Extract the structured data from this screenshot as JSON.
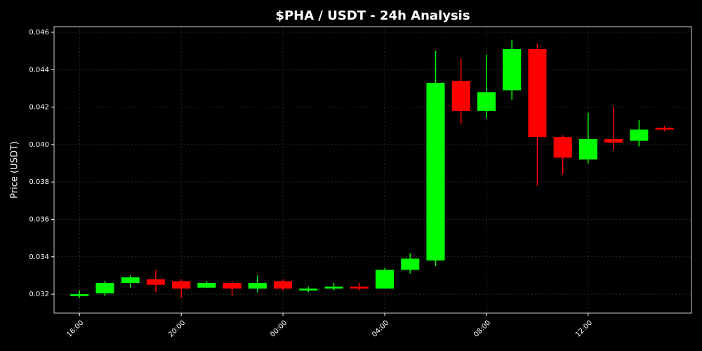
{
  "chart_data": {
    "type": "candlestick",
    "title": "$PHA / USDT - 24h Analysis",
    "y_label": "Price (USDT)",
    "x": [
      16,
      17,
      18,
      19,
      20,
      21,
      22,
      23,
      24,
      25,
      26,
      27,
      28,
      29,
      30,
      31,
      32,
      33,
      34,
      35,
      36,
      37,
      38,
      39
    ],
    "open": [
      0.0319,
      0.03205,
      0.0326,
      0.0328,
      0.0327,
      0.03235,
      0.0326,
      0.0323,
      0.0327,
      0.0322,
      0.0323,
      0.0324,
      0.0323,
      0.0333,
      0.0338,
      0.0434,
      0.0418,
      0.0429,
      0.0451,
      0.0404,
      0.0392,
      0.0403,
      0.0402,
      0.0409
    ],
    "high": [
      0.0322,
      0.0327,
      0.033,
      0.0333,
      0.0328,
      0.0327,
      0.0327,
      0.033,
      0.0328,
      0.0324,
      0.0326,
      0.0326,
      0.0334,
      0.0342,
      0.045,
      0.0446,
      0.0448,
      0.0456,
      0.0454,
      0.0405,
      0.0417,
      0.042,
      0.0413,
      0.041
    ],
    "low": [
      0.0318,
      0.0319,
      0.03235,
      0.0321,
      0.0318,
      0.03235,
      0.0319,
      0.0321,
      0.0322,
      0.0321,
      0.0322,
      0.0322,
      0.0323,
      0.0331,
      0.0335,
      0.0411,
      0.0414,
      0.0424,
      0.0378,
      0.0384,
      0.039,
      0.0397,
      0.0399,
      0.0407
    ],
    "close": [
      0.032,
      0.0326,
      0.0329,
      0.0325,
      0.0323,
      0.0326,
      0.0323,
      0.0326,
      0.0323,
      0.0323,
      0.0324,
      0.0323,
      0.0333,
      0.0339,
      0.0433,
      0.0418,
      0.0428,
      0.0451,
      0.0404,
      0.0393,
      0.0403,
      0.0401,
      0.0408,
      0.0408
    ],
    "up_color": "#00ff00",
    "down_color": "#ff0000",
    "xlim": [
      15.0,
      40.06
    ],
    "xticks": [
      {
        "value": 16,
        "label": "16:00"
      },
      {
        "value": 20,
        "label": "20:00"
      },
      {
        "value": 24,
        "label": "00:00"
      },
      {
        "value": 28,
        "label": "04:00"
      },
      {
        "value": 32,
        "label": "08:00"
      },
      {
        "value": 36,
        "label": "12:00"
      }
    ],
    "ylim": [
      0.03099,
      0.0463
    ],
    "yticks": [
      0.032,
      0.034,
      0.036,
      0.038,
      {
        "value": 0.04,
        "label": "0.040"
      },
      0.042,
      0.044,
      0.046
    ],
    "grid": true
  }
}
